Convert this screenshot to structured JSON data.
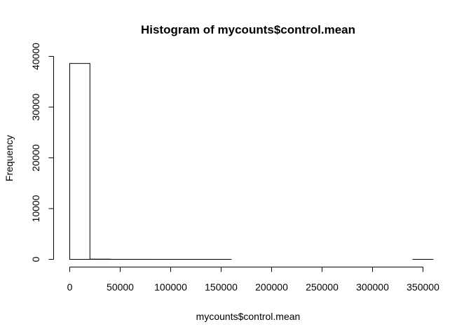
{
  "chart_data": {
    "type": "bar",
    "title": "Histogram of mycounts$control.mean",
    "xlabel": "mycounts$control.mean",
    "ylabel": "Frequency",
    "bin_width": 20000,
    "bins": [
      {
        "start": 0,
        "end": 20000,
        "count": 38600
      },
      {
        "start": 20000,
        "end": 40000,
        "count": 40
      },
      {
        "start": 40000,
        "end": 60000,
        "count": 8
      },
      {
        "start": 60000,
        "end": 80000,
        "count": 4
      },
      {
        "start": 80000,
        "end": 100000,
        "count": 2
      },
      {
        "start": 100000,
        "end": 120000,
        "count": 1
      },
      {
        "start": 120000,
        "end": 140000,
        "count": 1
      },
      {
        "start": 140000,
        "end": 160000,
        "count": 1
      },
      {
        "start": 160000,
        "end": 180000,
        "count": 0
      },
      {
        "start": 180000,
        "end": 200000,
        "count": 0
      },
      {
        "start": 200000,
        "end": 220000,
        "count": 0
      },
      {
        "start": 220000,
        "end": 240000,
        "count": 0
      },
      {
        "start": 240000,
        "end": 260000,
        "count": 0
      },
      {
        "start": 260000,
        "end": 280000,
        "count": 0
      },
      {
        "start": 280000,
        "end": 300000,
        "count": 0
      },
      {
        "start": 300000,
        "end": 320000,
        "count": 0
      },
      {
        "start": 320000,
        "end": 340000,
        "count": 0
      },
      {
        "start": 340000,
        "end": 360000,
        "count": 1
      }
    ],
    "x_ticks": [
      0,
      50000,
      100000,
      150000,
      200000,
      250000,
      300000,
      350000
    ],
    "y_ticks": [
      0,
      10000,
      20000,
      30000,
      40000
    ],
    "xlim": [
      0,
      360000
    ],
    "ylim": [
      0,
      40000
    ],
    "grid": false,
    "legend": "none"
  }
}
